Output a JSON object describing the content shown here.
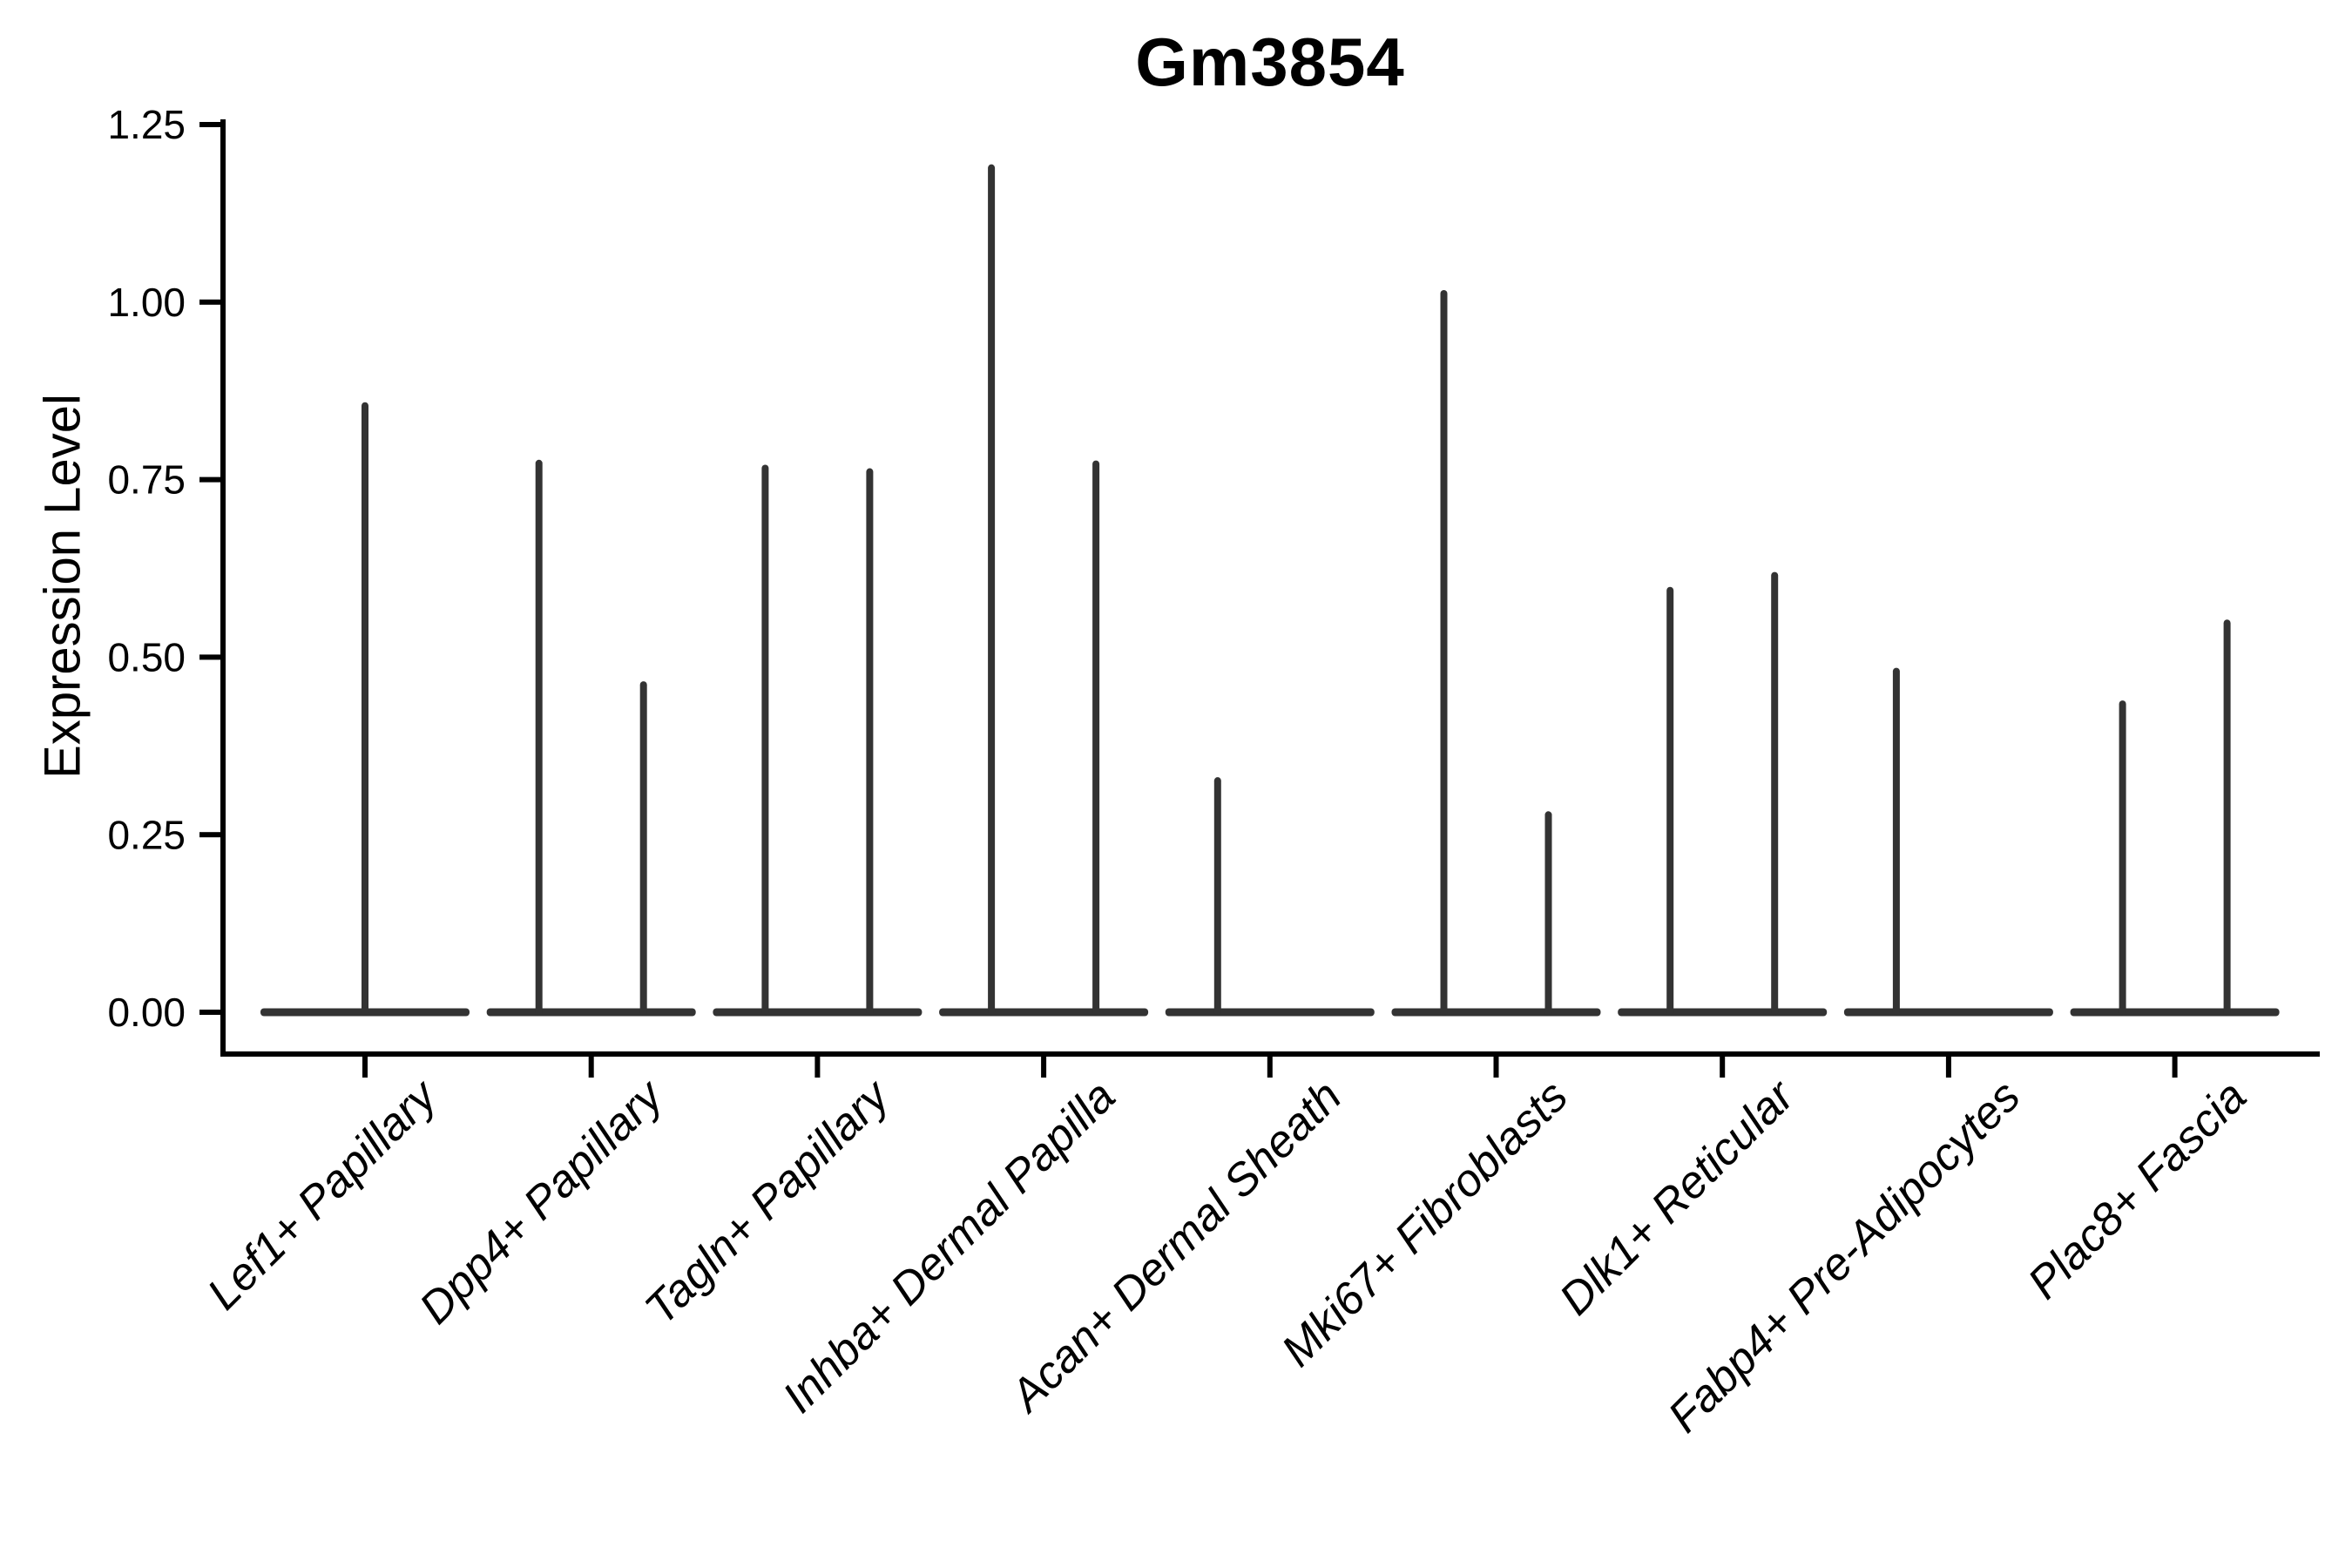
{
  "title": "Gm3854",
  "colors": {
    "background": "#ffffff",
    "violin_ink": "#333333",
    "axis_ink": "#000000",
    "text_ink": "#000000"
  },
  "chart_data": {
    "type": "violin",
    "title": "Gm3854",
    "xlabel": "",
    "ylabel": "Expression Level",
    "ylim": [
      0,
      1.25
    ],
    "ytick_values": [
      0,
      0.25,
      0.5,
      0.75,
      1.0,
      1.25
    ],
    "ytick_labels": [
      "0.00",
      "0.25",
      "0.50",
      "0.75",
      "1.00",
      "1.25"
    ],
    "grid": "off",
    "legend": "none",
    "x_label_rotation_deg": 45,
    "x_label_style": "italic",
    "categories": [
      "Lef1+ Papillary",
      "Dpp4+ Papillary",
      "Tagln+ Papillary",
      "Inhba+ Dermal Papilla",
      "Acan+ Dermal Sheath",
      "Mki67+ Fibroblasts",
      "Dlk1+ Reticular",
      "Fabp4+ Pre-Adipocytes",
      "Plac8+ Fascia"
    ],
    "series": [
      {
        "category": "Lef1+ Papillary",
        "violins": [
          {
            "slot": "center",
            "max_expression": 0.859
          }
        ]
      },
      {
        "category": "Dpp4+ Papillary",
        "violins": [
          {
            "slot": "left",
            "max_expression": 0.778
          },
          {
            "slot": "right",
            "max_expression": 0.466
          }
        ]
      },
      {
        "category": "Tagln+ Papillary",
        "violins": [
          {
            "slot": "left",
            "max_expression": 0.771
          },
          {
            "slot": "right",
            "max_expression": 0.766
          }
        ]
      },
      {
        "category": "Inhba+ Dermal Papilla",
        "violins": [
          {
            "slot": "left",
            "max_expression": 1.194
          },
          {
            "slot": "right",
            "max_expression": 0.777
          }
        ]
      },
      {
        "category": "Acan+ Dermal Sheath",
        "violins": [
          {
            "slot": "left",
            "max_expression": 0.331
          },
          {
            "slot": "right",
            "max_expression": 0
          }
        ]
      },
      {
        "category": "Mki67+ Fibroblasts",
        "violins": [
          {
            "slot": "left",
            "max_expression": 1.017
          },
          {
            "slot": "right",
            "max_expression": 0.283
          }
        ]
      },
      {
        "category": "Dlk1+ Reticular",
        "violins": [
          {
            "slot": "left",
            "max_expression": 0.599
          },
          {
            "slot": "right",
            "max_expression": 0.62
          }
        ]
      },
      {
        "category": "Fabp4+ Pre-Adipocytes",
        "violins": [
          {
            "slot": "left",
            "max_expression": 0.485
          },
          {
            "slot": "right",
            "max_expression": 0
          }
        ]
      },
      {
        "category": "Plac8+ Fascia",
        "violins": [
          {
            "slot": "left",
            "max_expression": 0.439
          },
          {
            "slot": "right",
            "max_expression": 0.553
          }
        ]
      }
    ],
    "note_distribution": "each violin is a flat density mass at 0 with a thin spike up to max_expression"
  }
}
